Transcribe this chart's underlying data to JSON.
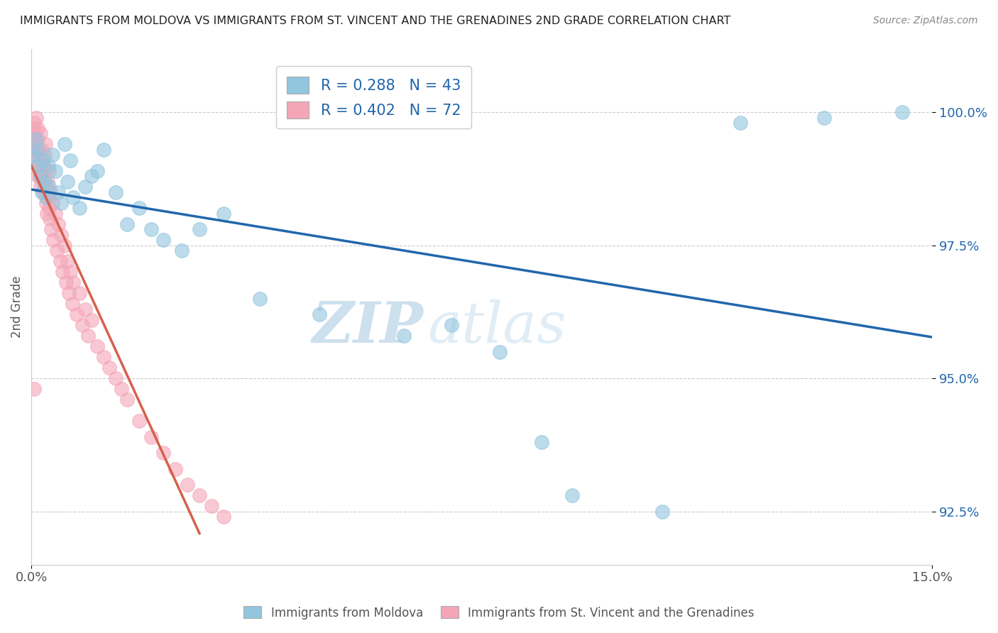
{
  "title": "IMMIGRANTS FROM MOLDOVA VS IMMIGRANTS FROM ST. VINCENT AND THE GRENADINES 2ND GRADE CORRELATION CHART",
  "source": "Source: ZipAtlas.com",
  "ylabel": "2nd Grade",
  "xlim": [
    0.0,
    15.0
  ],
  "ylim": [
    91.5,
    101.2
  ],
  "yticks": [
    92.5,
    95.0,
    97.5,
    100.0
  ],
  "ytick_labels": [
    "92.5%",
    "95.0%",
    "97.5%",
    "100.0%"
  ],
  "xticks": [
    0.0,
    15.0
  ],
  "xtick_labels": [
    "0.0%",
    "15.0%"
  ],
  "legend_labels": [
    "Immigrants from Moldova",
    "Immigrants from St. Vincent and the Grenadines"
  ],
  "blue_color": "#92c5de",
  "pink_color": "#f4a6b8",
  "blue_line_color": "#2166ac",
  "pink_line_color": "#d6604d",
  "R_blue": 0.288,
  "N_blue": 43,
  "R_pink": 0.402,
  "N_pink": 72,
  "watermark_zip": "ZIP",
  "watermark_atlas": "atlas",
  "background_color": "#ffffff",
  "grid_color": "#cccccc",
  "blue_x": [
    0.05,
    0.08,
    0.1,
    0.12,
    0.15,
    0.18,
    0.2,
    0.22,
    0.25,
    0.28,
    0.3,
    0.35,
    0.4,
    0.45,
    0.5,
    0.55,
    0.6,
    0.65,
    0.7,
    0.8,
    0.9,
    1.0,
    1.1,
    1.2,
    1.4,
    1.6,
    1.8,
    2.0,
    2.2,
    2.5,
    2.8,
    3.2,
    3.8,
    4.8,
    6.2,
    7.0,
    7.8,
    8.5,
    9.0,
    10.5,
    11.8,
    13.2,
    14.5
  ],
  "blue_y": [
    99.2,
    99.5,
    99.0,
    99.3,
    98.8,
    98.5,
    99.1,
    98.7,
    98.4,
    99.0,
    98.6,
    99.2,
    98.9,
    98.5,
    98.3,
    99.4,
    98.7,
    99.1,
    98.4,
    98.2,
    98.6,
    98.8,
    98.9,
    99.3,
    98.5,
    97.9,
    98.2,
    97.8,
    97.6,
    97.4,
    97.8,
    98.1,
    96.5,
    96.2,
    95.8,
    96.0,
    95.5,
    93.8,
    92.8,
    92.5,
    99.8,
    99.9,
    100.0
  ],
  "pink_x": [
    0.02,
    0.03,
    0.04,
    0.05,
    0.06,
    0.07,
    0.08,
    0.08,
    0.09,
    0.1,
    0.1,
    0.11,
    0.12,
    0.13,
    0.14,
    0.15,
    0.15,
    0.16,
    0.17,
    0.18,
    0.19,
    0.2,
    0.2,
    0.21,
    0.22,
    0.23,
    0.24,
    0.25,
    0.26,
    0.27,
    0.28,
    0.29,
    0.3,
    0.31,
    0.32,
    0.33,
    0.35,
    0.37,
    0.4,
    0.42,
    0.45,
    0.48,
    0.5,
    0.52,
    0.55,
    0.58,
    0.6,
    0.63,
    0.65,
    0.68,
    0.7,
    0.75,
    0.8,
    0.85,
    0.9,
    0.95,
    1.0,
    1.1,
    1.2,
    1.3,
    1.4,
    1.5,
    1.6,
    1.8,
    2.0,
    2.2,
    2.4,
    2.6,
    2.8,
    3.0,
    3.2,
    0.05
  ],
  "pink_y": [
    99.5,
    99.7,
    99.3,
    99.8,
    99.6,
    99.4,
    99.1,
    99.9,
    99.3,
    99.7,
    98.8,
    99.5,
    99.2,
    99.0,
    98.8,
    99.6,
    98.6,
    99.1,
    98.9,
    99.3,
    98.7,
    99.0,
    98.5,
    98.8,
    99.2,
    98.6,
    99.4,
    98.3,
    98.1,
    98.7,
    98.4,
    98.9,
    98.2,
    98.0,
    98.5,
    97.8,
    98.3,
    97.6,
    98.1,
    97.4,
    97.9,
    97.2,
    97.7,
    97.0,
    97.5,
    96.8,
    97.2,
    96.6,
    97.0,
    96.4,
    96.8,
    96.2,
    96.6,
    96.0,
    96.3,
    95.8,
    96.1,
    95.6,
    95.4,
    95.2,
    95.0,
    94.8,
    94.6,
    94.2,
    93.9,
    93.6,
    93.3,
    93.0,
    92.8,
    92.6,
    92.4,
    94.8
  ]
}
